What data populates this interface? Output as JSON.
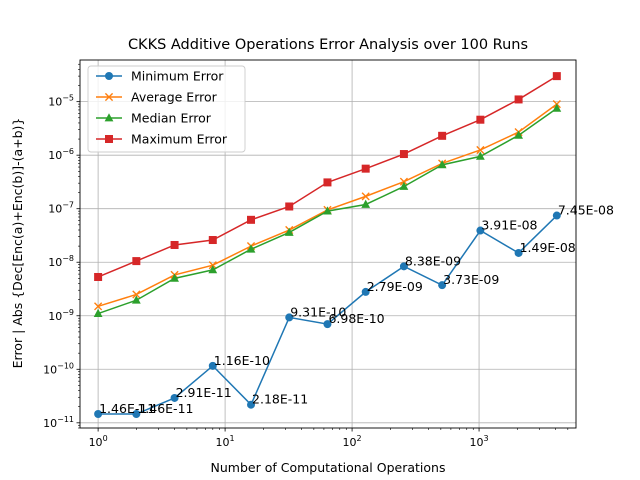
{
  "chart_data": {
    "type": "line",
    "title": "CKKS Additive Operations Error Analysis over 100 Runs",
    "xlabel": "Number of Computational Operations",
    "ylabel": "Error | Abs {Dec[Enc(a)+Enc(b)]-(a+b)}",
    "xscale": "log",
    "yscale": "log",
    "xlim": [
      0.72,
      5800
    ],
    "ylim": [
      8e-12,
      6e-05
    ],
    "grid": true,
    "legend_position": "top-left",
    "x": [
      1,
      2,
      4,
      8,
      16,
      32,
      64,
      128,
      256,
      512,
      1024,
      2048,
      4096
    ],
    "x_ticks": [
      {
        "value": 1,
        "base": "10",
        "exp": "0"
      },
      {
        "value": 10,
        "base": "10",
        "exp": "1"
      },
      {
        "value": 100,
        "base": "10",
        "exp": "2"
      },
      {
        "value": 1000,
        "base": "10",
        "exp": "3"
      }
    ],
    "y_ticks": [
      {
        "value": 1e-11,
        "base": "10",
        "exp": "−11"
      },
      {
        "value": 1e-10,
        "base": "10",
        "exp": "−10"
      },
      {
        "value": 1e-09,
        "base": "10",
        "exp": "−9"
      },
      {
        "value": 1e-08,
        "base": "10",
        "exp": "−8"
      },
      {
        "value": 1e-07,
        "base": "10",
        "exp": "−7"
      },
      {
        "value": 1e-06,
        "base": "10",
        "exp": "−6"
      },
      {
        "value": 1e-05,
        "base": "10",
        "exp": "−5"
      }
    ],
    "series": [
      {
        "name": "Minimum Error",
        "color": "#1f77b4",
        "marker": "circle",
        "values": [
          1.46e-11,
          1.46e-11,
          2.91e-11,
          1.16e-10,
          2.18e-11,
          9.31e-10,
          6.98e-10,
          2.79e-09,
          8.38e-09,
          3.73e-09,
          3.91e-08,
          1.49e-08,
          7.45e-08
        ]
      },
      {
        "name": "Average Error",
        "color": "#ff7f0e",
        "marker": "x",
        "values": [
          1.5e-09,
          2.5e-09,
          5.8e-09,
          8.8e-09,
          2e-08,
          4e-08,
          9.5e-08,
          1.7e-07,
          3.2e-07,
          7e-07,
          1.25e-06,
          2.7e-06,
          9e-06
        ]
      },
      {
        "name": "Median Error",
        "color": "#2ca02c",
        "marker": "triangle",
        "values": [
          1.1e-09,
          1.95e-09,
          5e-09,
          7.2e-09,
          1.75e-08,
          3.6e-08,
          9e-08,
          1.2e-07,
          2.6e-07,
          6.6e-07,
          9.5e-07,
          2.35e-06,
          7.5e-06
        ]
      },
      {
        "name": "Maximum Error",
        "color": "#d62728",
        "marker": "square",
        "values": [
          5.3e-09,
          1.05e-08,
          2.1e-08,
          2.6e-08,
          6.2e-08,
          1.1e-07,
          3.1e-07,
          5.6e-07,
          1.05e-06,
          2.3e-06,
          4.6e-06,
          1.1e-05,
          3e-05
        ]
      }
    ],
    "annotations": [
      {
        "x": 1,
        "y": 1.46e-11,
        "text": "1.46E-11"
      },
      {
        "x": 2,
        "y": 1.46e-11,
        "text": "1.46E-11"
      },
      {
        "x": 4,
        "y": 2.91e-11,
        "text": "2.91E-11"
      },
      {
        "x": 8,
        "y": 1.16e-10,
        "text": "1.16E-10"
      },
      {
        "x": 16,
        "y": 2.18e-11,
        "text": "2.18E-11"
      },
      {
        "x": 32,
        "y": 9.31e-10,
        "text": "9.31E-10"
      },
      {
        "x": 64,
        "y": 6.98e-10,
        "text": "6.98E-10"
      },
      {
        "x": 128,
        "y": 2.79e-09,
        "text": "2.79E-09"
      },
      {
        "x": 256,
        "y": 8.38e-09,
        "text": "8.38E-09"
      },
      {
        "x": 512,
        "y": 3.73e-09,
        "text": "3.73E-09"
      },
      {
        "x": 1024,
        "y": 3.91e-08,
        "text": "3.91E-08"
      },
      {
        "x": 2048,
        "y": 1.49e-08,
        "text": "1.49E-08"
      },
      {
        "x": 4096,
        "y": 7.45e-08,
        "text": "7.45E-08"
      }
    ]
  }
}
